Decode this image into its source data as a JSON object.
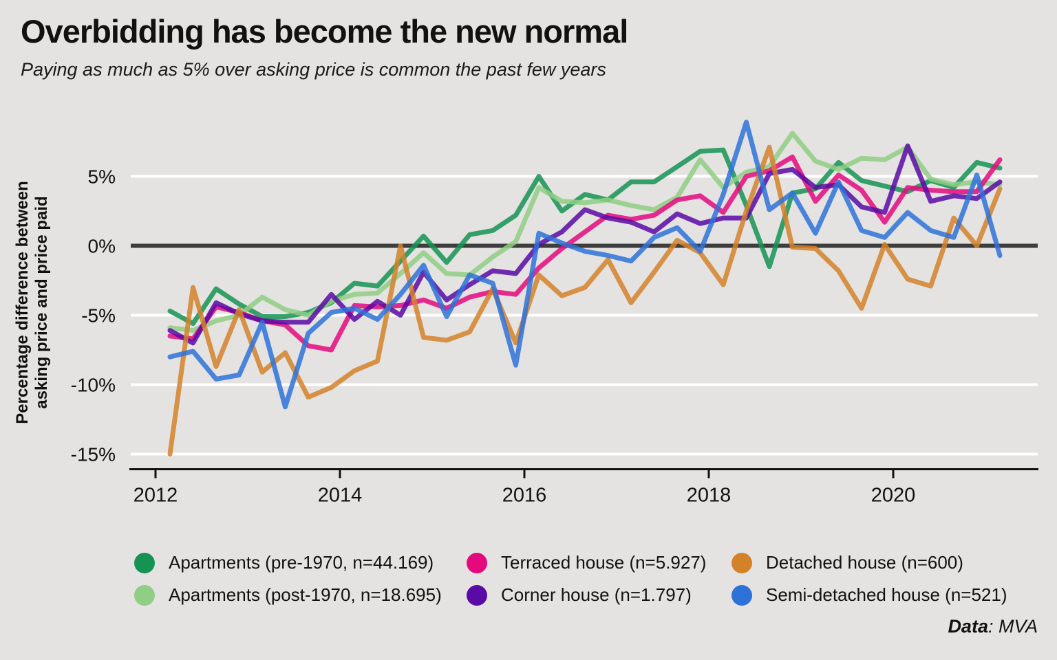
{
  "title": "Overbidding has become the new normal",
  "subtitle": "Paying as much as 5% over asking price is common the past few years",
  "y_axis": {
    "label_line1": "Percentage difference between",
    "label_line2": "asking price and price paid"
  },
  "footer": {
    "bold": "Data",
    "rest": ": MVA"
  },
  "chart_data": {
    "type": "line",
    "title": "Overbidding has become the new normal",
    "subtitle": "Paying as much as 5% over asking price is common the past few years",
    "ylabel": "Percentage difference between asking price and price paid",
    "unit": "%",
    "x_start": 2012.125,
    "x_step": 0.25,
    "x_tick_labels": [
      "2012",
      "2014",
      "2016",
      "2018",
      "2020"
    ],
    "x_tick_years": [
      2012,
      2014,
      2016,
      2018,
      2020
    ],
    "y_ticks": [
      {
        "value": 5,
        "label": "5%"
      },
      {
        "value": 0,
        "label": "0%"
      },
      {
        "value": -5,
        "label": "-5%"
      },
      {
        "value": -10,
        "label": "-10%"
      },
      {
        "value": -15,
        "label": "-15%"
      }
    ],
    "ylim": [
      -16.5,
      9.5
    ],
    "grid": "horizontal-white",
    "zero_line_color": "#3d3d3d",
    "legend_position": "bottom",
    "background_color": "#e4e3e1",
    "series": [
      {
        "name": "Apartments (pre-1970, n=44.169)",
        "color": "#169354",
        "values": [
          -4.7,
          -5.6,
          -3.1,
          -4.2,
          -5.1,
          -5.1,
          -4.8,
          -4.1,
          -2.7,
          -2.9,
          -1.1,
          0.7,
          -1.2,
          0.8,
          1.1,
          2.2,
          5.0,
          2.5,
          3.7,
          3.3,
          4.6,
          4.6,
          5.7,
          6.8,
          6.9,
          2.9,
          -1.5,
          3.8,
          4.1,
          6.0,
          4.7,
          4.3,
          3.9,
          4.7,
          4.2,
          6.0,
          5.6
        ]
      },
      {
        "name": "Apartments (post-1970, n=18.695)",
        "color": "#8fce84",
        "values": [
          -5.9,
          -6.1,
          -5.4,
          -5.0,
          -3.7,
          -4.6,
          -5.0,
          -4.0,
          -3.5,
          -3.4,
          -2.0,
          -0.5,
          -2.0,
          -2.1,
          -0.8,
          0.3,
          4.2,
          3.2,
          3.1,
          3.3,
          2.9,
          2.6,
          3.5,
          6.2,
          4.2,
          5.3,
          5.7,
          8.1,
          6.1,
          5.5,
          6.3,
          6.2,
          7.1,
          4.8,
          4.4,
          4.6,
          4.4
        ]
      },
      {
        "name": "Terraced house (n=5.927)",
        "color": "#e40a7e",
        "values": [
          -6.5,
          -6.7,
          -4.4,
          -4.8,
          -5.4,
          -5.7,
          -7.2,
          -7.5,
          -4.3,
          -4.4,
          -4.3,
          -3.9,
          -4.5,
          -3.7,
          -3.3,
          -3.5,
          -1.6,
          -0.2,
          1.0,
          2.2,
          1.9,
          2.2,
          3.3,
          3.6,
          2.4,
          5.0,
          5.4,
          6.4,
          3.2,
          5.1,
          4.0,
          1.7,
          4.2,
          4.0,
          3.9,
          3.9,
          6.2
        ]
      },
      {
        "name": "Corner house (n=1.797)",
        "color": "#5a0aa5",
        "values": [
          -6.1,
          -7.0,
          -4.1,
          -4.9,
          -5.4,
          -5.5,
          -5.5,
          -3.5,
          -5.3,
          -4.0,
          -5.0,
          -1.9,
          -3.9,
          -2.8,
          -1.8,
          -2.0,
          0.1,
          1.0,
          2.6,
          2.0,
          1.7,
          1.0,
          2.3,
          1.6,
          2.0,
          2.0,
          5.2,
          5.5,
          4.2,
          4.4,
          2.8,
          2.4,
          7.2,
          3.2,
          3.6,
          3.4,
          4.6
        ]
      },
      {
        "name": "Detached house (n=600)",
        "color": "#d4822a",
        "values": [
          -15.0,
          -3.0,
          -8.7,
          -4.6,
          -9.1,
          -7.7,
          -10.9,
          -10.2,
          -9.0,
          -8.3,
          0.0,
          -6.6,
          -6.8,
          -6.2,
          -3.1,
          -7.0,
          -2.1,
          -3.6,
          -3.0,
          -1.0,
          -4.1,
          -1.9,
          0.4,
          -0.5,
          -2.8,
          2.5,
          7.1,
          -0.1,
          -0.2,
          -1.8,
          -4.5,
          0.1,
          -2.4,
          -2.9,
          2.0,
          0.0,
          4.1
        ]
      },
      {
        "name": "Semi-detached house (n=521)",
        "color": "#2e72d8",
        "values": [
          -8.0,
          -7.6,
          -9.6,
          -9.3,
          -5.5,
          -11.6,
          -6.3,
          -4.8,
          -4.5,
          -5.3,
          -3.5,
          -1.4,
          -5.1,
          -2.1,
          -2.7,
          -8.6,
          0.9,
          0.2,
          -0.4,
          -0.7,
          -1.1,
          0.6,
          1.3,
          -0.4,
          3.7,
          8.9,
          2.6,
          3.8,
          0.9,
          4.6,
          1.1,
          0.6,
          2.4,
          1.1,
          0.6,
          5.1,
          -0.7
        ]
      }
    ]
  }
}
